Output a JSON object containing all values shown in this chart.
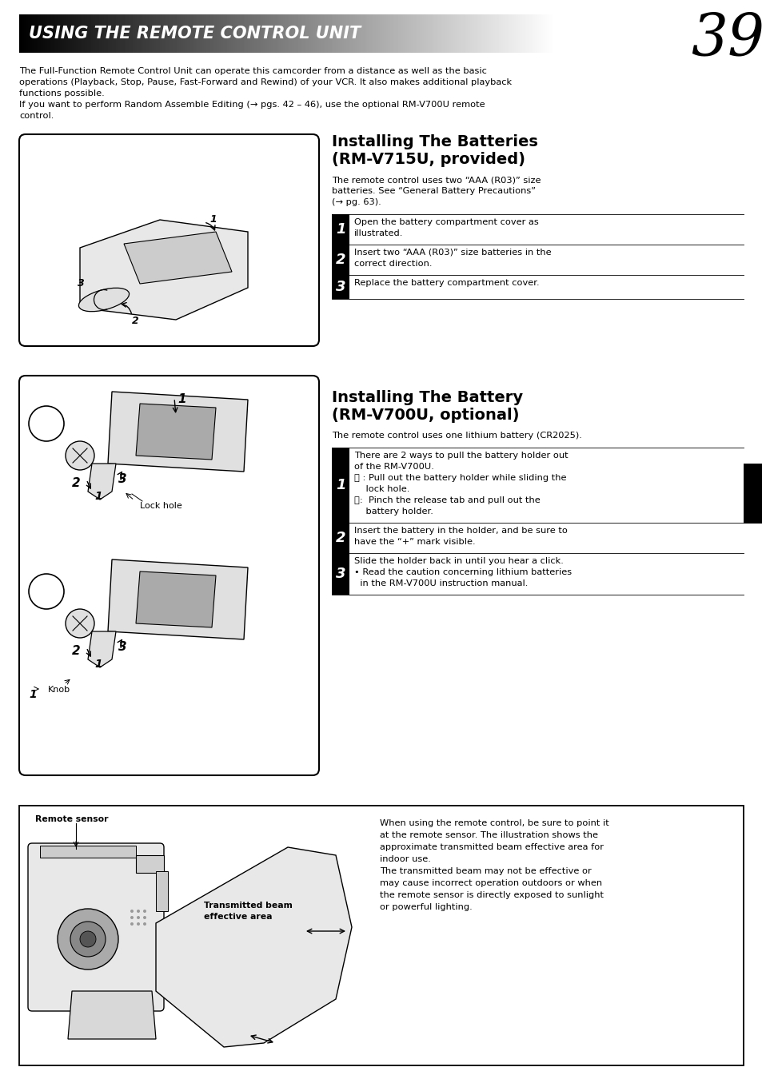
{
  "page_number": "39",
  "header_text": "USING THE REMOTE CONTROL UNIT",
  "intro_line1": "The Full-Function Remote Control Unit can operate this camcorder from a distance as well as the basic",
  "intro_line2": "operations (Playback, Stop, Pause, Fast-Forward and Rewind) of your VCR. It also makes additional playback",
  "intro_line3": "functions possible.",
  "intro_line4": "If you want to perform Random Assemble Editing (→ pgs. 42 – 46), use the optional RM-V700U remote",
  "intro_line5": "control.",
  "s1_title1": "Installing The Batteries",
  "s1_title2": "(RM-V715U, provided)",
  "s1_desc1": "The remote control uses two “AAA (R03)” size",
  "s1_desc2": "batteries. See “General Battery Precautions”",
  "s1_desc3": "(→ pg. 63).",
  "s1_steps": [
    {
      "num": "1",
      "lines": [
        "Open the battery compartment cover as",
        "illustrated."
      ]
    },
    {
      "num": "2",
      "lines": [
        "Insert two “AAA (R03)” size batteries in the",
        "correct direction."
      ]
    },
    {
      "num": "3",
      "lines": [
        "Replace the battery compartment cover."
      ]
    }
  ],
  "s2_title1": "Installing The Battery",
  "s2_title2": "(RM-V700U, optional)",
  "s2_desc1": "The remote control uses one lithium battery (CR2025).",
  "s2_steps": [
    {
      "num": "1",
      "lines": [
        "There are 2 ways to pull the battery holder out",
        "of the RM-V700U.",
        "Ⓐ : Pull out the battery holder while sliding the",
        "    lock hole.",
        "Ⓑ:  Pinch the release tab and pull out the",
        "    battery holder."
      ]
    },
    {
      "num": "2",
      "lines": [
        "Insert the battery in the holder, and be sure to",
        "have the “+” mark visible."
      ]
    },
    {
      "num": "3",
      "lines": [
        "Slide the holder back in until you hear a click.",
        "• Read the caution concerning lithium batteries",
        "  in the RM-V700U instruction manual."
      ]
    }
  ],
  "bottom_lines": [
    "When using the remote control, be sure to point it",
    "at the remote sensor. The illustration shows the",
    "approximate transmitted beam effective area for",
    "indoor use.",
    "The transmitted beam may not be effective or",
    "may cause incorrect operation outdoors or when",
    "the remote sensor is directly exposed to sunlight",
    "or powerful lighting."
  ],
  "remote_sensor_label": "Remote sensor",
  "beam_label1": "Transmitted beam",
  "beam_label2": "effective area",
  "bg": "#ffffff",
  "black": "#000000",
  "white": "#ffffff",
  "gray_light": "#cccccc",
  "gray_mid": "#aaaaaa",
  "gray_fill": "#dddddd"
}
